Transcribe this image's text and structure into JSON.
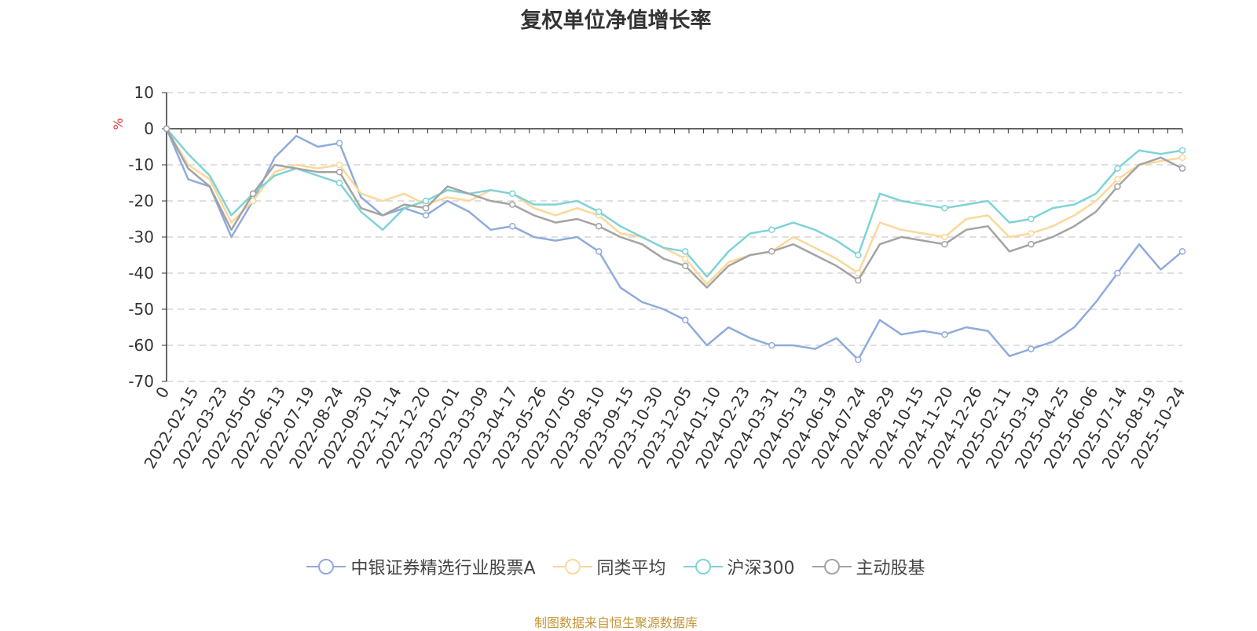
{
  "chart_data": {
    "type": "line",
    "title": "复权单位净值增长率",
    "ylabel": "%",
    "xlabel": "",
    "ylim": [
      -70,
      10
    ],
    "yticks": [
      10,
      0,
      -10,
      -20,
      -30,
      -40,
      -50,
      -60,
      -70
    ],
    "grid": true,
    "legend_position": "bottom",
    "x_tick_labels": [
      "0",
      "2022-02-15",
      "2022-03-23",
      "2022-05-05",
      "2022-06-13",
      "2022-07-19",
      "2022-08-24",
      "2022-09-30",
      "2022-11-14",
      "2022-12-20",
      "2023-02-01",
      "2023-03-09",
      "2023-04-17",
      "2023-05-26",
      "2023-07-05",
      "2023-08-10",
      "2023-09-15",
      "2023-10-30",
      "2023-12-05",
      "2024-01-10",
      "2024-02-23",
      "2024-03-31",
      "2024-05-13",
      "2024-06-19",
      "2024-07-24",
      "2024-08-29",
      "2024-10-15",
      "2024-11-20",
      "2024-12-26",
      "2025-02-11",
      "2025-03-19",
      "2025-04-25",
      "2025-06-06",
      "2025-07-14",
      "2025-08-19",
      "2025-10-24"
    ],
    "series": [
      {
        "name": "中银证券精选行业股票A",
        "color": "#8fabdc",
        "values": [
          0,
          -14,
          -16,
          -30,
          -20,
          -8,
          -2,
          -5,
          -4,
          -19,
          -24,
          -22,
          -24,
          -20,
          -23,
          -28,
          -27,
          -30,
          -31,
          -30,
          -34,
          -44,
          -48,
          -50,
          -53,
          -60,
          -55,
          -58,
          -60,
          -60,
          -61,
          -58,
          -64,
          -53,
          -57,
          -56,
          -57,
          -55,
          -56,
          -63,
          -61,
          -59,
          -55,
          -48,
          -40,
          -32,
          -39,
          -34
        ]
      },
      {
        "name": "同类平均",
        "color": "#fbd899",
        "values": [
          0,
          -10,
          -14,
          -26,
          -20,
          -12,
          -10,
          -11,
          -10,
          -18,
          -20,
          -18,
          -21,
          -19,
          -20,
          -17,
          -18,
          -22,
          -24,
          -22,
          -24,
          -29,
          -30,
          -33,
          -36,
          -43,
          -37,
          -35,
          -34,
          -30,
          -33,
          -36,
          -40,
          -26,
          -28,
          -29,
          -30,
          -25,
          -24,
          -30,
          -29,
          -27,
          -24,
          -20,
          -14,
          -10,
          -9,
          -8
        ]
      },
      {
        "name": "沪深300",
        "color": "#7ed3d7",
        "values": [
          0,
          -7,
          -13,
          -24,
          -18,
          -13,
          -11,
          -13,
          -15,
          -23,
          -28,
          -22,
          -20,
          -17,
          -18,
          -17,
          -18,
          -21,
          -21,
          -20,
          -23,
          -27,
          -30,
          -33,
          -34,
          -41,
          -34,
          -29,
          -28,
          -26,
          -28,
          -31,
          -35,
          -18,
          -20,
          -21,
          -22,
          -21,
          -20,
          -26,
          -25,
          -22,
          -21,
          -18,
          -11,
          -6,
          -7,
          -6
        ]
      },
      {
        "name": "主动股基",
        "color": "#a3a3a3",
        "values": [
          0,
          -11,
          -16,
          -28,
          -18,
          -10,
          -11,
          -12,
          -12,
          -22,
          -24,
          -21,
          -22,
          -16,
          -18,
          -20,
          -21,
          -24,
          -26,
          -25,
          -27,
          -30,
          -32,
          -36,
          -38,
          -44,
          -38,
          -35,
          -34,
          -32,
          -35,
          -38,
          -42,
          -32,
          -30,
          -31,
          -32,
          -28,
          -27,
          -34,
          -32,
          -30,
          -27,
          -23,
          -16,
          -10,
          -8,
          -11
        ]
      }
    ]
  },
  "source_note": "制图数据来自恒生聚源数据库"
}
